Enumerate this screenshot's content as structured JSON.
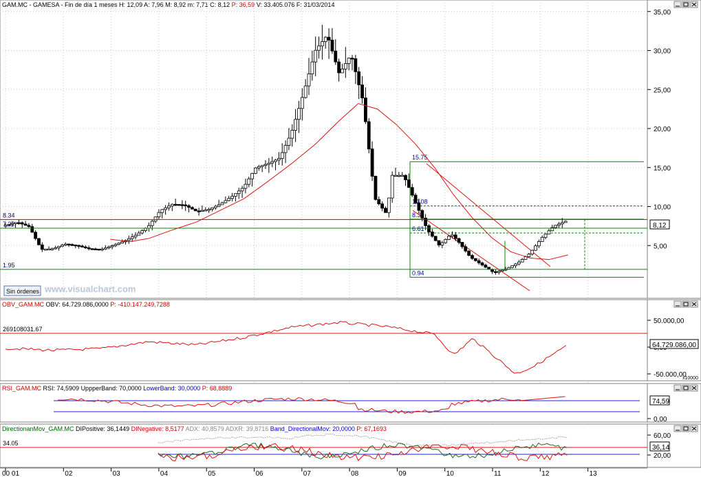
{
  "panels": {
    "price": {
      "header": "GAM.MC - GAMESA - Fin de día 1 meses  H: 12,09  A: 7,96  M: 8,92  m: 7,71  C: 8,12  P: 36,59  V: 33.405.076  F: 31/03/2014",
      "header_parts": [
        {
          "text": "GAM.MC - GAMESA - Fin de día 1 meses  H: 12,09  A: 7,96  M: 8,92  m: 7,71  C: 8,12  ",
          "color": "#000000"
        },
        {
          "text": "P: 36,59",
          "color": "#cc0000"
        },
        {
          "text": "  V: 33.405.076  F: 31/03/2014",
          "color": "#000000"
        }
      ],
      "current_value": "8,12",
      "button": "Sin órdenes",
      "watermark": "www.visualchart.com"
    },
    "obv": {
      "header_parts": [
        {
          "text": "OBV_GAM.MC",
          "color": "#cc0000"
        },
        {
          "text": "  OBV: 64.729.086,0000  ",
          "color": "#000000"
        },
        {
          "text": "P: -410.147.249,7288",
          "color": "#cc0000"
        }
      ],
      "current_value": "64.729.086,00",
      "level_label": "269108031.67",
      "multiplier": "x10000"
    },
    "rsi": {
      "header_parts": [
        {
          "text": "RSI_GAM.MC",
          "color": "#cc0000"
        },
        {
          "text": "  RSI: 74,5909  ",
          "color": "#000000"
        },
        {
          "text": "UppperBand: 70,0000",
          "color": "#000000"
        },
        {
          "text": "  LowerBand: 30,0000  ",
          "color": "#0000cc"
        },
        {
          "text": "P: 68,8889",
          "color": "#cc0000"
        }
      ],
      "current_value": "74,59"
    },
    "dmi": {
      "header_parts": [
        {
          "text": "DirectionanMov_GAM.MC",
          "color": "#006600"
        },
        {
          "text": "  DIPositive: 36,1449  ",
          "color": "#000000"
        },
        {
          "text": "DINegative: 8,5177",
          "color": "#cc0000"
        },
        {
          "text": "  ADX: 40,8579  ",
          "color": "#888888"
        },
        {
          "text": "ADXR: 39,8716",
          "color": "#888888"
        },
        {
          "text": "  Band_DirectionalMov: 20,0000  ",
          "color": "#0000cc"
        },
        {
          "text": "P: 67,1693",
          "color": "#cc0000"
        }
      ],
      "current_value": "36,14",
      "level_label": "34.05"
    }
  },
  "chart_data": [
    {
      "type": "candlestick",
      "title": "GAM.MC - GAMESA - Fin de día 1 meses",
      "x_tick_labels": [
        "00 01",
        "02",
        "03",
        "04",
        "05",
        "06",
        "07",
        "08",
        "09",
        "10",
        "11",
        "12",
        "13"
      ],
      "ylim": [
        0,
        35
      ],
      "y_ticks": [
        5,
        10,
        15,
        20,
        25,
        30,
        35
      ],
      "y_tick_labels": [
        "5,00",
        "10,00",
        "15,00",
        "20,00",
        "25,00",
        "30,00",
        "35,00"
      ],
      "close_path": [
        [
          0,
          7.6
        ],
        [
          0.25,
          8.0
        ],
        [
          0.5,
          7.4
        ],
        [
          0.75,
          4.5
        ],
        [
          1,
          4.6
        ],
        [
          1.25,
          5.2
        ],
        [
          1.5,
          5.0
        ],
        [
          1.75,
          4.6
        ],
        [
          2,
          4.5
        ],
        [
          2.25,
          5.0
        ],
        [
          2.5,
          5.6
        ],
        [
          2.75,
          6.4
        ],
        [
          3,
          7.5
        ],
        [
          3.25,
          9.5
        ],
        [
          3.5,
          10.3
        ],
        [
          3.75,
          10.2
        ],
        [
          4,
          9.4
        ],
        [
          4.25,
          9.6
        ],
        [
          4.5,
          10.3
        ],
        [
          4.75,
          11.3
        ],
        [
          5,
          12.5
        ],
        [
          5.25,
          15.0
        ],
        [
          5.5,
          15.5
        ],
        [
          5.75,
          16.2
        ],
        [
          6,
          19.5
        ],
        [
          6.25,
          24.5
        ],
        [
          6.5,
          30.0
        ],
        [
          6.75,
          32.0
        ],
        [
          7,
          27.0
        ],
        [
          7.25,
          29.5
        ],
        [
          7.5,
          23.5
        ],
        [
          7.75,
          11.0
        ],
        [
          8,
          9.0
        ],
        [
          8.1,
          14.0
        ],
        [
          8.35,
          14.0
        ],
        [
          8.6,
          10.5
        ],
        [
          8.85,
          7.0
        ],
        [
          9.1,
          5.0
        ],
        [
          9.35,
          6.5
        ],
        [
          9.5,
          5.5
        ],
        [
          9.75,
          3.5
        ],
        [
          10,
          2.5
        ],
        [
          10.25,
          1.5
        ],
        [
          10.5,
          2.0
        ],
        [
          10.75,
          2.8
        ],
        [
          11,
          4.0
        ],
        [
          11.25,
          6.0
        ],
        [
          11.5,
          7.5
        ],
        [
          11.75,
          8.12
        ]
      ],
      "overlays": {
        "moving_average": [
          [
            2.2,
            5.8
          ],
          [
            2.6,
            5.5
          ],
          [
            3,
            5.9
          ],
          [
            3.5,
            7.0
          ],
          [
            4,
            8.0
          ],
          [
            4.5,
            9.5
          ],
          [
            5,
            11.0
          ],
          [
            5.5,
            13.2
          ],
          [
            6,
            15.5
          ],
          [
            6.5,
            18.0
          ],
          [
            7,
            21.0
          ],
          [
            7.4,
            23.2
          ],
          [
            7.8,
            22.5
          ],
          [
            8.2,
            20.5
          ],
          [
            8.6,
            18.0
          ],
          [
            9,
            15.0
          ],
          [
            9.4,
            11.5
          ],
          [
            9.8,
            8.5
          ],
          [
            10.2,
            6.0
          ],
          [
            10.6,
            4.2
          ],
          [
            11,
            3.4
          ],
          [
            11.4,
            3.2
          ],
          [
            11.8,
            3.8
          ]
        ],
        "horizontal_lines": [
          {
            "value": 8.34,
            "label": "8.34",
            "color": "#cc0000"
          },
          {
            "value": 7.22,
            "label": "7.22",
            "color": "#008800"
          },
          {
            "value": 1.95,
            "label": "1.95",
            "color": "#008800"
          }
        ],
        "fibonacci_labels": [
          "15.75",
          "10.08",
          "8.38",
          "6.61",
          "0.94"
        ]
      }
    },
    {
      "type": "line",
      "series": [
        {
          "name": "OBV",
          "color": "#cc0000"
        }
      ],
      "y_tick_labels": [
        "50.000,00",
        "0,00",
        "-50.000,00"
      ],
      "level_label": "269108031.67",
      "values_path": [
        [
          0,
          -2
        ],
        [
          1,
          -6
        ],
        [
          2,
          -3
        ],
        [
          3,
          10
        ],
        [
          4,
          4
        ],
        [
          5,
          18
        ],
        [
          6,
          37
        ],
        [
          7,
          46
        ],
        [
          8,
          38
        ],
        [
          9,
          24
        ],
        [
          9.4,
          -15
        ],
        [
          9.8,
          16
        ],
        [
          10.3,
          -20
        ],
        [
          10.7,
          -50
        ],
        [
          11.1,
          -35
        ],
        [
          11.8,
          4
        ]
      ]
    },
    {
      "type": "line",
      "series": [
        {
          "name": "RSI",
          "color": "#cc0000"
        }
      ],
      "y_tick_labels": [
        "0,00"
      ],
      "upper_band": 70,
      "lower_band": 30,
      "ylim": [
        0,
        100
      ]
    },
    {
      "type": "line",
      "series": [
        {
          "name": "DIPositive",
          "color": "#006600"
        },
        {
          "name": "DINegative",
          "color": "#cc0000"
        },
        {
          "name": "ADX",
          "color": "#888888"
        }
      ],
      "y_tick_labels": [
        "60,00",
        "20,00"
      ],
      "band": 20,
      "level": 34.05
    }
  ]
}
